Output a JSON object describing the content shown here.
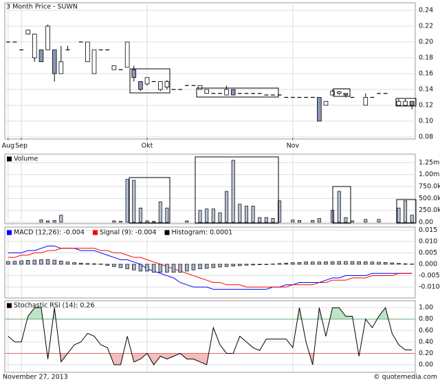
{
  "chart_data": [
    {
      "type": "candlestick",
      "title": "3 Month Price - SUWN",
      "categories": [
        "Aug",
        null,
        "Sep",
        null,
        null,
        null,
        null,
        null,
        null,
        null,
        null,
        null,
        null,
        null,
        null,
        null,
        null,
        null,
        null,
        null,
        null,
        "Okt",
        null,
        null,
        null,
        null,
        null,
        null,
        null,
        null,
        null,
        null,
        null,
        null,
        null,
        null,
        null,
        null,
        null,
        null,
        null,
        null,
        null,
        "Nov",
        null,
        null,
        null,
        null,
        null,
        null,
        null,
        null,
        null,
        null,
        null,
        null,
        null,
        null,
        null,
        null,
        null,
        null
      ],
      "open": [
        0.2,
        0.2,
        0.19,
        0.21,
        0.18,
        0.19,
        0.19,
        0.19,
        0.16,
        0.19,
        null,
        0.2,
        0.175,
        0.16,
        0.19,
        0.19,
        0.165,
        0.165,
        0.168,
        0.165,
        0.15,
        0.147,
        0.15,
        0.14,
        0.143,
        0.14,
        0.14,
        0.145,
        0.145,
        0.14,
        0.135,
        0.135,
        0.135,
        0.133,
        0.14,
        0.135,
        0.135,
        0.135,
        0.135,
        0.133,
        0.133,
        0.133,
        0.13,
        0.13,
        0.13,
        0.13,
        0.13,
        0.13,
        0.12,
        0.133,
        0.135,
        0.135,
        0.13,
        null,
        0.12,
        0.13,
        0.135,
        0.135,
        null,
        0.12,
        0.12,
        0.125
      ],
      "high": [
        0.2,
        0.2,
        0.19,
        0.215,
        0.21,
        0.19,
        0.222,
        0.19,
        0.195,
        0.195,
        null,
        0.2,
        0.2,
        0.19,
        0.19,
        0.19,
        0.17,
        0.165,
        0.2,
        0.17,
        0.15,
        0.155,
        0.15,
        0.15,
        0.152,
        0.14,
        0.14,
        0.145,
        0.145,
        0.145,
        0.14,
        0.135,
        0.135,
        0.145,
        0.14,
        0.135,
        0.135,
        0.135,
        0.135,
        0.133,
        0.133,
        0.133,
        0.13,
        0.13,
        0.13,
        0.13,
        0.13,
        0.13,
        0.125,
        0.14,
        0.138,
        0.135,
        0.13,
        null,
        0.135,
        0.13,
        0.135,
        0.135,
        null,
        0.128,
        0.128,
        0.125
      ],
      "low": [
        0.2,
        0.2,
        0.19,
        0.21,
        0.175,
        0.175,
        0.19,
        0.15,
        0.16,
        0.19,
        null,
        0.2,
        0.175,
        0.16,
        0.19,
        0.19,
        0.165,
        0.165,
        0.168,
        0.15,
        0.138,
        0.145,
        0.15,
        0.138,
        0.14,
        0.14,
        0.14,
        0.145,
        0.145,
        0.14,
        0.135,
        0.135,
        0.135,
        0.133,
        0.133,
        0.135,
        0.135,
        0.135,
        0.135,
        0.133,
        0.133,
        0.133,
        0.13,
        0.13,
        0.13,
        0.13,
        0.13,
        0.1,
        0.12,
        0.133,
        0.133,
        0.13,
        0.13,
        null,
        0.12,
        0.13,
        0.135,
        0.135,
        null,
        0.12,
        0.12,
        0.115
      ],
      "close": [
        0.2,
        0.2,
        0.19,
        0.215,
        0.21,
        0.175,
        0.22,
        0.16,
        0.175,
        0.19,
        null,
        0.2,
        0.2,
        0.19,
        0.19,
        0.19,
        0.17,
        0.165,
        0.2,
        0.155,
        0.14,
        0.155,
        0.15,
        0.15,
        0.15,
        0.14,
        0.14,
        0.145,
        0.145,
        0.145,
        0.14,
        0.135,
        0.135,
        0.14,
        0.133,
        0.135,
        0.135,
        0.135,
        0.135,
        0.133,
        0.133,
        0.133,
        0.13,
        0.13,
        0.13,
        0.13,
        0.13,
        0.1,
        0.125,
        0.138,
        0.137,
        0.133,
        0.13,
        null,
        0.13,
        0.13,
        0.135,
        0.135,
        null,
        0.125,
        0.125,
        0.12
      ],
      "up_color": "#ffffff",
      "down_color": "#8a96b8",
      "ylim": [
        0.08,
        0.24
      ],
      "yticks": [
        0.08,
        {
          "value": 0.1,
          "label": "0.10"
        },
        0.12,
        0.14,
        0.16,
        0.18,
        {
          "value": 0.2,
          "label": "0.20"
        },
        0.22,
        0.24
      ],
      "grid": true
    },
    {
      "type": "bar",
      "title": "Volume",
      "values": [
        0,
        0,
        0,
        0,
        0,
        50000,
        30000,
        40000,
        150000,
        0,
        0,
        0,
        0,
        0,
        0,
        0,
        30000,
        20000,
        900000,
        880000,
        300000,
        30000,
        20000,
        430000,
        300000,
        0,
        0,
        30000,
        0,
        250000,
        280000,
        280000,
        200000,
        650000,
        1300000,
        380000,
        340000,
        340000,
        100000,
        100000,
        80000,
        450000,
        0,
        50000,
        40000,
        0,
        40000,
        80000,
        0,
        250000,
        650000,
        100000,
        30000,
        0,
        60000,
        0,
        60000,
        0,
        0,
        300000,
        450000,
        150000
      ],
      "color": "#b4bed6",
      "ylim": [
        0,
        1400000
      ],
      "yticks": [
        {
          "value": 0,
          "label": "0.00"
        },
        {
          "value": 250000,
          "label": "250.0k"
        },
        {
          "value": 500000,
          "label": "500.0k"
        },
        {
          "value": 750000,
          "label": "750.0k"
        },
        {
          "value": 1000000,
          "label": "1.00m"
        },
        {
          "value": 1250000,
          "label": "1.25m"
        }
      ],
      "grid": true
    },
    {
      "type": "line",
      "series": [
        {
          "name": "MACD (12,26): -0.004",
          "color": "#0000ff",
          "values": [
            0.005,
            0.005,
            0.005,
            0.006,
            0.006,
            0.007,
            0.008,
            0.008,
            0.007,
            0.007,
            0.007,
            0.006,
            0.006,
            0.006,
            0.005,
            0.004,
            0.003,
            0.002,
            0.002,
            0.001,
            0,
            -0.002,
            -0.003,
            -0.004,
            -0.005,
            -0.006,
            -0.008,
            -0.009,
            -0.01,
            -0.01,
            -0.01,
            -0.011,
            -0.011,
            -0.011,
            -0.011,
            -0.011,
            -0.011,
            -0.011,
            -0.011,
            -0.011,
            -0.01,
            -0.01,
            -0.009,
            -0.009,
            -0.008,
            -0.008,
            -0.008,
            -0.008,
            -0.007,
            -0.006,
            -0.006,
            -0.005,
            -0.005,
            -0.005,
            -0.005,
            -0.004,
            -0.004,
            -0.004,
            -0.004,
            -0.004,
            -0.004,
            -0.004
          ]
        },
        {
          "name": "Signal (9): -0.004",
          "color": "#ff0000",
          "values": [
            0.003,
            0.003,
            0.004,
            0.004,
            0.005,
            0.005,
            0.006,
            0.006,
            0.007,
            0.007,
            0.007,
            0.007,
            0.007,
            0.007,
            0.006,
            0.006,
            0.005,
            0.005,
            0.004,
            0.003,
            0.003,
            0.002,
            0.001,
            0,
            -0.001,
            -0.002,
            -0.003,
            -0.004,
            -0.005,
            -0.006,
            -0.007,
            -0.008,
            -0.008,
            -0.009,
            -0.009,
            -0.009,
            -0.01,
            -0.01,
            -0.01,
            -0.01,
            -0.01,
            -0.01,
            -0.01,
            -0.009,
            -0.009,
            -0.009,
            -0.009,
            -0.008,
            -0.008,
            -0.007,
            -0.007,
            -0.007,
            -0.006,
            -0.006,
            -0.006,
            -0.005,
            -0.005,
            -0.005,
            -0.005,
            -0.004,
            -0.004,
            -0.004
          ]
        },
        {
          "name": "Histogram: 0.0001",
          "color": "#000000",
          "type": "bar",
          "fill": "#aab4cc",
          "values": [
            0.0012,
            0.0013,
            0.0015,
            0.0017,
            0.0018,
            0.002,
            0.0021,
            0.0018,
            0.0014,
            0.001,
            0.0007,
            0.0005,
            0.0003,
            0.0002,
            0.0001,
            -0.0005,
            -0.001,
            -0.0015,
            -0.002,
            -0.0025,
            -0.003,
            -0.003,
            -0.0035,
            -0.0035,
            -0.0035,
            -0.0035,
            -0.0035,
            -0.003,
            -0.0025,
            -0.002,
            -0.0018,
            -0.0015,
            -0.0012,
            -0.001,
            -0.0008,
            -0.0006,
            -0.0004,
            -0.0003,
            -0.0002,
            -0.0001,
            0.0001,
            0.0003,
            0.0005,
            0.0007,
            0.0008,
            0.001,
            0.001,
            0.001,
            0.0011,
            0.0011,
            0.0012,
            0.0012,
            0.0012,
            0.0011,
            0.0011,
            0.001,
            0.0009,
            0.0008,
            0.0006,
            0.0004,
            0.0002,
            0.0001
          ]
        }
      ],
      "ylim": [
        -0.0145,
        0.016
      ],
      "yticks": [
        {
          "value": -0.01,
          "label": "-0.010"
        },
        {
          "value": -0.005,
          "label": "-0.005"
        },
        {
          "value": 0,
          "label": "0.000"
        },
        {
          "value": 0.005,
          "label": "0.005"
        },
        {
          "value": 0.01,
          "label": "0.010"
        },
        {
          "value": 0.015,
          "label": "0.015"
        }
      ],
      "grid": true
    },
    {
      "type": "line",
      "series": [
        {
          "name": "Stochastic RSI (14): 0.26",
          "color": "#000000",
          "values": [
            0.5,
            0.4,
            0.4,
            0.85,
            1,
            1,
            0.1,
            1,
            0.05,
            0.2,
            0.35,
            0.4,
            0.55,
            0.5,
            0.35,
            0.3,
            0,
            0,
            0.5,
            0.05,
            0.1,
            0.2,
            0,
            0.15,
            0.1,
            0.15,
            0.2,
            0.1,
            0.1,
            0.05,
            0,
            0.65,
            0.35,
            0.2,
            0.2,
            0.5,
            0.4,
            0.3,
            0.25,
            0.45,
            0.45,
            0.45,
            0.45,
            0.3,
            1,
            0.4,
            0,
            1,
            0.5,
            1,
            1,
            0.85,
            0.85,
            0.15,
            0.8,
            0.65,
            0.85,
            1,
            0.55,
            0.35,
            0.26,
            0.26
          ]
        }
      ],
      "upper_color": "#6fb07f",
      "upper_fill": "#bfe3c8",
      "lower_color": "#e06a6a",
      "lower_fill": "#f5bcbc",
      "ylim": [
        -0.12,
        1.11
      ],
      "yticks": [
        {
          "value": 0,
          "label": "0.00"
        },
        {
          "value": 0.2,
          "label": "0.20"
        },
        {
          "value": 0.4,
          "label": "0.40"
        },
        {
          "value": 0.6,
          "label": "0.60"
        },
        {
          "value": 0.8,
          "label": "0.80"
        },
        {
          "value": 1,
          "label": "1.00"
        }
      ],
      "grid": true
    }
  ],
  "footer": {
    "date": "November 27, 2013",
    "source": "© quotemedia.com"
  }
}
